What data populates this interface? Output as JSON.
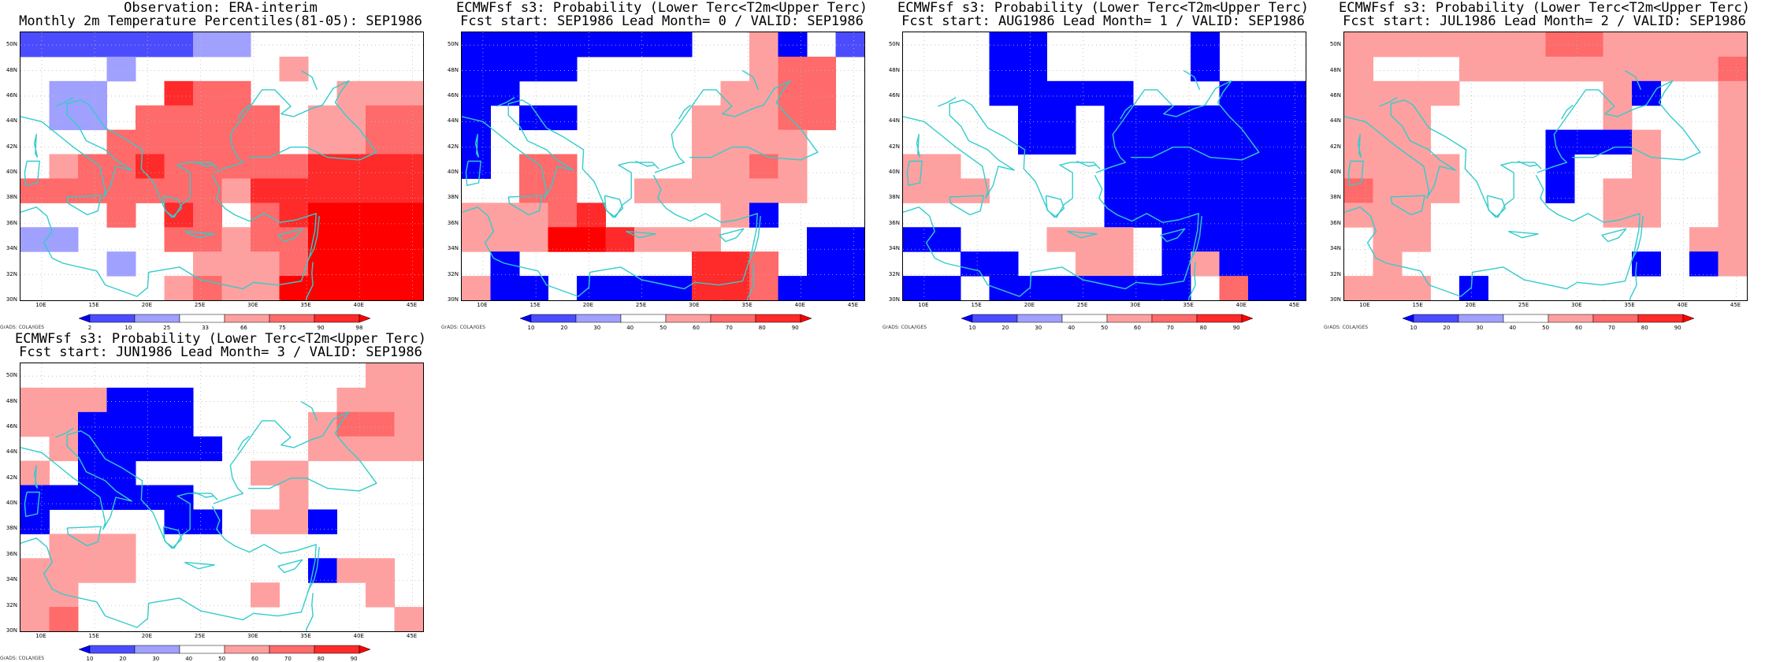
{
  "colors": {
    "scale": [
      "#0000ff",
      "#4c4cff",
      "#a0a0ff",
      "#ffffff",
      "#ffa0a0",
      "#ff6a6a",
      "#ff2a2a",
      "#ff0000"
    ],
    "coast": "#33cccc",
    "grid": "#bbbbbb"
  },
  "axes": {
    "x_ticks": [
      "10E",
      "15E",
      "20E",
      "25E",
      "30E",
      "35E",
      "40E",
      "45E"
    ],
    "y_ticks": [
      "50N",
      "48N",
      "46N",
      "44N",
      "42N",
      "40N",
      "38N",
      "36N",
      "34N",
      "32N",
      "30N"
    ],
    "lon_range": [
      8,
      46
    ],
    "lat_range": [
      30,
      51
    ]
  },
  "credit": "GrADS: COLA/IGES",
  "panels": [
    {
      "title1": "Observation: ERA-interim",
      "title2": "Monthly 2m Temperature Percentiles(81-05): SEP1986",
      "colorbar_labels": [
        "2",
        "10",
        "25",
        "33",
        "66",
        "75",
        "90",
        "98"
      ],
      "grid": [
        "11111122333333",
        "33323333343333",
        "32233655333444",
        "32235555534455",
        "33355555534455",
        "34556555556666",
        "55555554666666",
        "33353653567777",
        "22333554557777",
        "33323344457777",
        "33333454477777"
      ]
    },
    {
      "title1": "ECMWFsf s3: Probability (Lower Terc<T2m<Upper Terc)",
      "title2": "Fcst start: SEP1986  Lead Month= 0 / VALID: SEP1986",
      "colorbar_labels": [
        "10",
        "20",
        "30",
        "40",
        "50",
        "60",
        "70",
        "80",
        "90"
      ],
      "grid": [
        "00000000334031",
        "00003333334553",
        "00333333344553",
        "03003333444553",
        "03333333444433",
        "03553333445433",
        "33553344444433",
        "44456333340333",
        "44477644433300",
        "30333333665300",
        "40030000665000"
      ]
    },
    {
      "title1": "ECMWFsf s3: Probability (Lower Terc<T2m<Upper Terc)",
      "title2": "Fcst start: AUG1986  Lead Month= 1 / VALID: SEP1986",
      "colorbar_labels": [
        "10",
        "20",
        "30",
        "40",
        "50",
        "60",
        "70",
        "80",
        "90"
      ],
      "grid": [
        "33300333330333",
        "33300333330333",
        "33300000333000",
        "33330030000000",
        "33330030000000",
        "44333330000000",
        "44433330000000",
        "33333330000000",
        "00333444300000",
        "33003344304000",
        "00300000003500"
      ]
    },
    {
      "title1": "ECMWFsf s3: Probability (Lower Terc<T2m<Upper Terc)",
      "title2": "Fcst start: JUL1986  Lead Month= 2 / VALID: SEP1986",
      "colorbar_labels": [
        "10",
        "20",
        "30",
        "40",
        "50",
        "60",
        "70",
        "80",
        "90"
      ],
      "grid": [
        "44444445544444",
        "43334444444445",
        "44443333340334",
        "44433333343334",
        "44433330004334",
        "44443330334334",
        "54443330344334",
        "44433333344334",
        "34433333333344",
        "34333333330304",
        "44430333333333"
      ]
    },
    {
      "title1": "ECMWFsf s3: Probability (Lower Terc<T2m<Upper Terc)",
      "title2": "Fcst start: JUN1986  Lead Month= 3 / VALID: SEP1986",
      "colorbar_labels": [
        "10",
        "20",
        "30",
        "40",
        "50",
        "60",
        "70",
        "80",
        "90"
      ],
      "grid": [
        "33333333333344",
        "44400033333444",
        "44000033334554",
        "34000003334444",
        "43003333443333",
        "00000033343333",
        "03333003440333",
        "34443333333333",
        "44443333330443",
        "44333333433343",
        "45333333333334"
      ]
    }
  ]
}
